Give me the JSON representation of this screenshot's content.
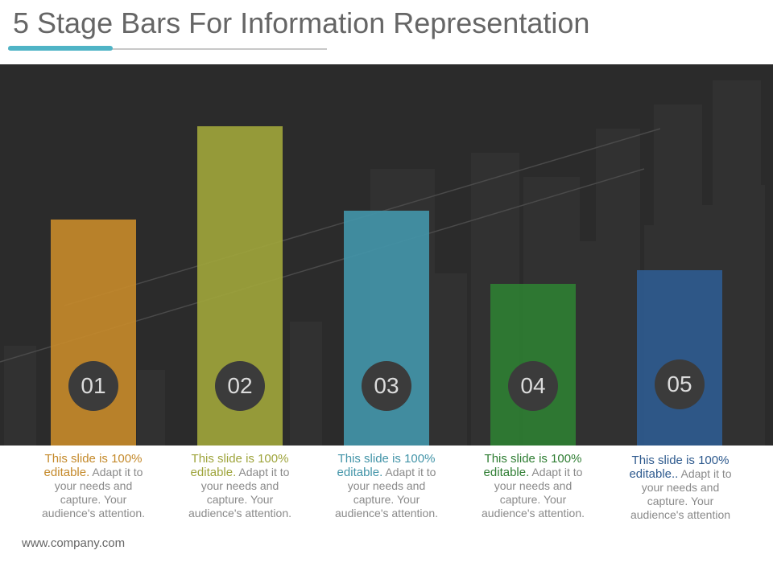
{
  "title": "5 Stage Bars For Information Representation",
  "footer": "www.company.com",
  "colors": {
    "accent": "#4fb4c6",
    "bar1": "#c4892a",
    "bar2": "#9ea43b",
    "bar3": "#4294a8",
    "bar4": "#2e7d32",
    "bar5": "#2e5a8e"
  },
  "chart_data": {
    "type": "bar",
    "categories": [
      "01",
      "02",
      "03",
      "04",
      "05"
    ],
    "values": [
      281,
      397,
      292,
      201,
      218
    ],
    "ylim": [
      0,
      474
    ],
    "grid": false
  },
  "descriptions": [
    {
      "highlight": "This slide is 100% editable.",
      "rest": " Adapt it to your needs and capture. Your audience's attention."
    },
    {
      "highlight": "This slide is 100% editable.",
      "rest": " Adapt it to your needs and capture. Your audience's attention."
    },
    {
      "highlight": "This slide is 100% editable.",
      "rest": " Adapt it to your needs and capture. Your audience's attention."
    },
    {
      "highlight": "This slide is 100% editable.",
      "rest": " Adapt it to your needs and capture. Your audience's attention."
    },
    {
      "highlight": "This slide is 100% editable..",
      "rest": " Adapt it to your needs and capture. Your audience's attention"
    }
  ]
}
